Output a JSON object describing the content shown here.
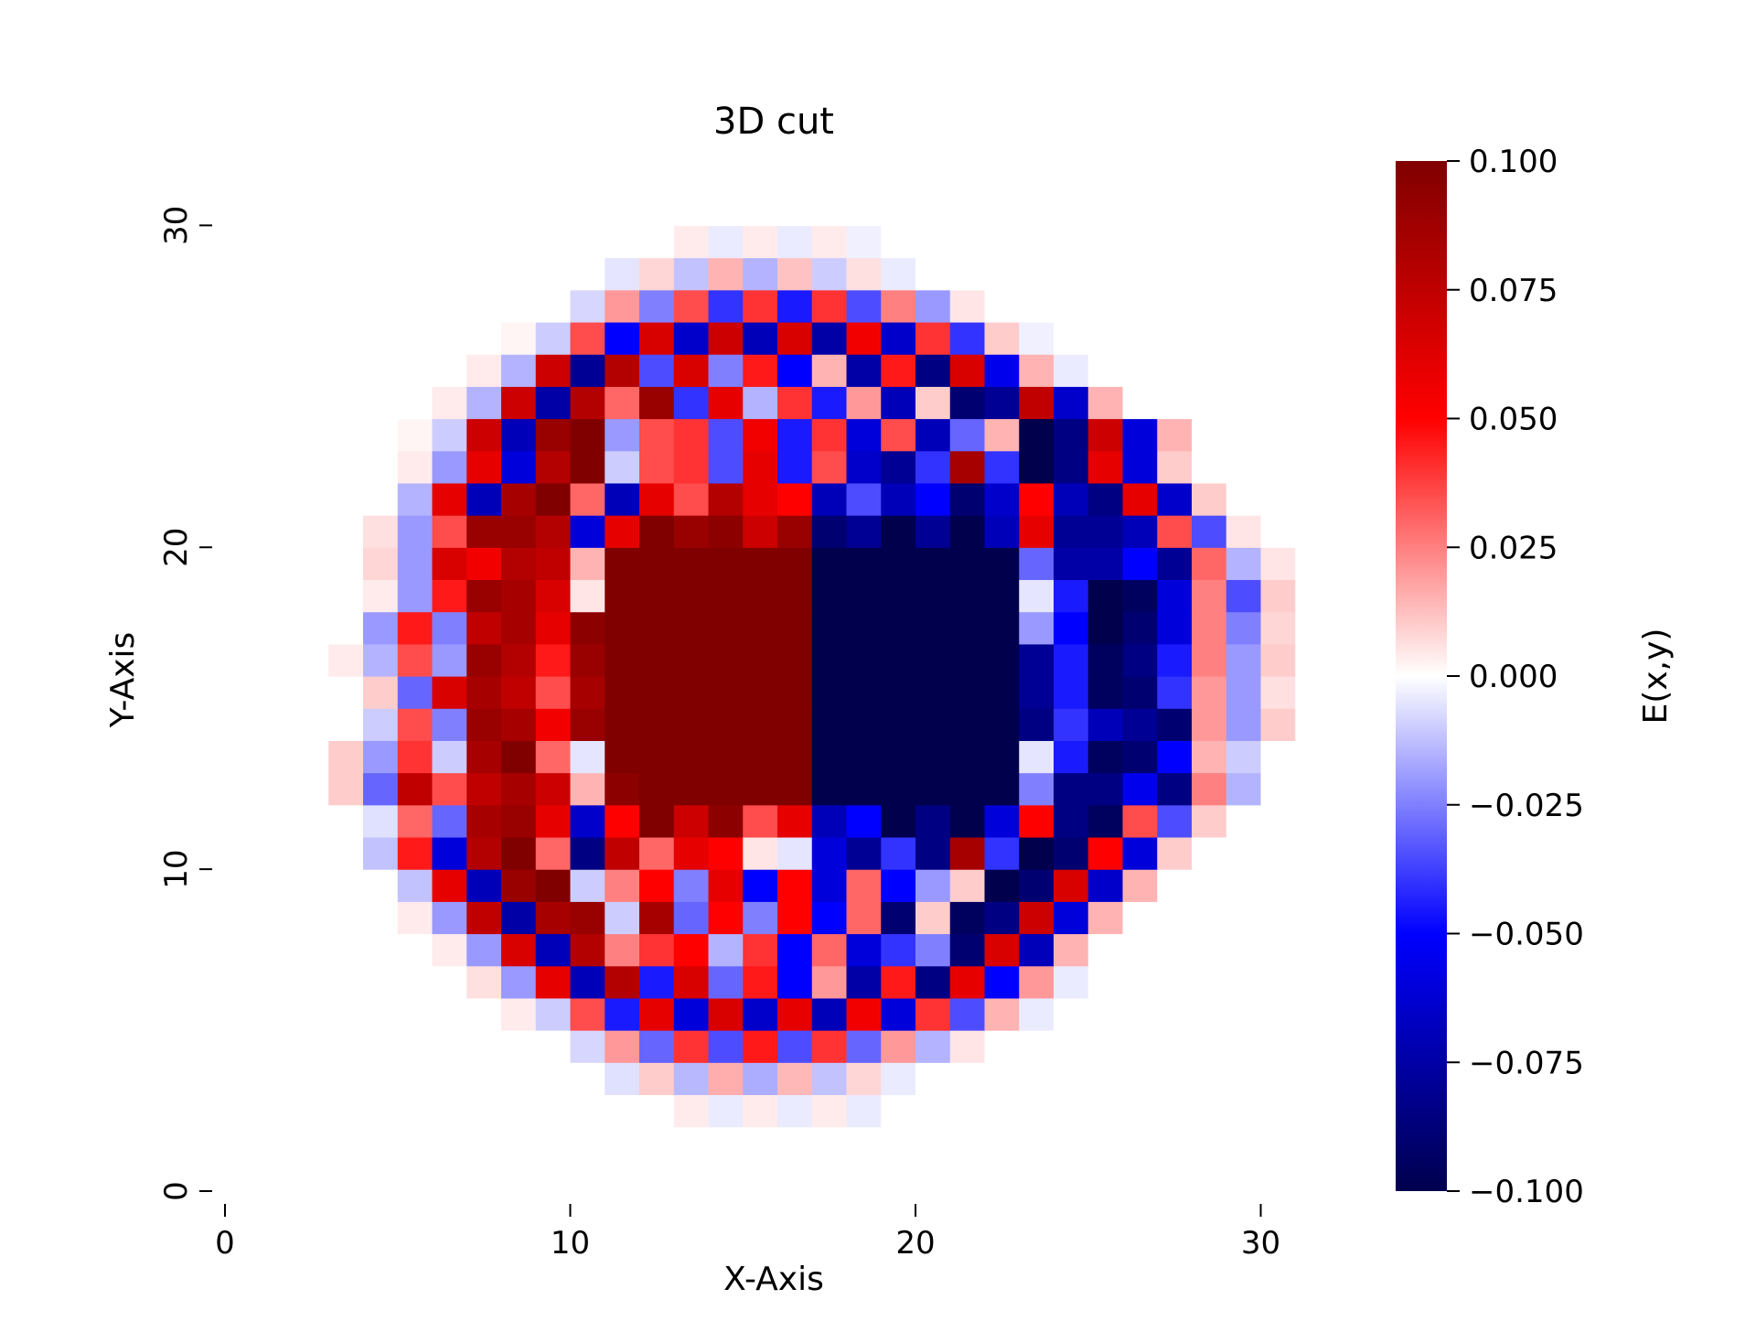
{
  "chart_data": {
    "type": "heatmap",
    "title": "3D cut",
    "xlabel": "X-Axis",
    "ylabel": "Y-Axis",
    "xlim": [
      0,
      32
    ],
    "ylim": [
      0,
      32
    ],
    "x_ticks": [
      0,
      10,
      20,
      30
    ],
    "y_ticks": [
      0,
      10,
      20,
      30
    ],
    "x_tick_labels": [
      "0",
      "10",
      "20",
      "30"
    ],
    "y_tick_labels": [
      "0",
      "10",
      "20",
      "30"
    ],
    "grid": false,
    "colorbar": {
      "label": "E(x,y)",
      "min": -0.1,
      "max": 0.1,
      "ticks": [
        0.1,
        0.075,
        0.05,
        0.025,
        0.0,
        -0.025,
        -0.05,
        -0.075,
        -0.1
      ],
      "tick_labels": [
        "0.100",
        "0.075",
        "0.050",
        "0.025",
        "0.000",
        "−0.025",
        "−0.050",
        "−0.075",
        "−0.100"
      ],
      "colormap": "seismic",
      "color_stops": [
        "#00004d",
        "#0000ff",
        "#ffffff",
        "#ff0000",
        "#800000"
      ]
    },
    "grid_size": [
      32,
      32
    ],
    "z": [
      [
        0,
        0,
        0,
        0,
        0,
        0,
        0,
        0,
        0,
        0,
        0,
        0,
        0,
        0,
        0,
        0,
        0,
        0,
        0,
        0,
        0,
        0,
        0,
        0,
        0,
        0,
        0,
        0,
        0,
        0,
        0,
        0
      ],
      [
        0,
        0,
        0,
        0,
        0,
        0,
        0,
        0,
        0,
        0,
        0,
        0,
        0,
        0,
        0,
        0,
        0,
        0,
        0,
        0,
        0,
        0,
        0,
        0,
        0,
        0,
        0,
        0,
        0,
        0,
        0,
        0
      ],
      [
        0,
        0,
        0,
        0,
        0,
        0,
        0,
        0,
        0,
        0,
        0,
        0,
        0,
        0.004,
        -0.004,
        0.004,
        -0.004,
        0.004,
        -0.004,
        0,
        0,
        0,
        0,
        0,
        0,
        0,
        0,
        0,
        0,
        0,
        0,
        0
      ],
      [
        0,
        0,
        0,
        0,
        0,
        0,
        0,
        0,
        0,
        0,
        0,
        -0.006,
        0.01,
        -0.014,
        0.016,
        -0.016,
        0.014,
        -0.012,
        0.008,
        -0.004,
        0,
        0,
        0,
        0,
        0,
        0,
        0,
        0,
        0,
        0,
        0,
        0
      ],
      [
        0,
        0,
        0,
        0,
        0,
        0,
        0,
        0,
        0,
        0,
        -0.008,
        0.02,
        -0.03,
        0.04,
        -0.035,
        0.045,
        -0.035,
        0.04,
        -0.03,
        0.02,
        -0.015,
        0.005,
        0,
        0,
        0,
        0,
        0,
        0,
        0,
        0,
        0,
        0
      ],
      [
        0,
        0,
        0,
        0,
        0,
        0,
        0,
        0,
        0.004,
        -0.01,
        0.035,
        -0.045,
        0.06,
        -0.06,
        0.065,
        -0.065,
        0.06,
        -0.07,
        0.055,
        -0.06,
        0.04,
        -0.035,
        0.015,
        -0.004,
        0,
        0,
        0,
        0,
        0,
        0,
        0,
        0
      ],
      [
        0,
        0,
        0,
        0,
        0,
        0,
        0,
        0.006,
        -0.02,
        0.06,
        -0.07,
        0.08,
        -0.045,
        0.065,
        -0.03,
        0.045,
        -0.05,
        0.02,
        -0.075,
        0.045,
        -0.085,
        0.06,
        -0.05,
        0.02,
        -0.004,
        0,
        0,
        0,
        0,
        0,
        0,
        0
      ],
      [
        0,
        0,
        0,
        0,
        0,
        0,
        0.004,
        -0.02,
        0.065,
        -0.07,
        0.08,
        0.025,
        0.04,
        0.05,
        -0.015,
        0.04,
        -0.05,
        0.03,
        -0.06,
        -0.04,
        -0.025,
        -0.09,
        0.065,
        -0.07,
        0.015,
        0,
        0,
        0,
        0,
        0,
        0,
        0
      ],
      [
        0,
        0,
        0,
        0,
        0,
        0.004,
        -0.02,
        0.075,
        -0.075,
        0.085,
        0.09,
        -0.01,
        0.085,
        -0.03,
        0.05,
        -0.025,
        0.05,
        -0.05,
        0.03,
        -0.09,
        0.01,
        -0.095,
        -0.085,
        0.07,
        -0.06,
        0.015,
        0,
        0,
        0,
        0,
        0,
        0
      ],
      [
        0,
        0,
        0,
        0,
        0,
        -0.012,
        0.06,
        -0.07,
        0.09,
        0.1,
        -0.01,
        0.025,
        0.05,
        -0.025,
        0.06,
        -0.05,
        0.05,
        -0.06,
        0.03,
        -0.05,
        -0.02,
        0.01,
        -0.1,
        -0.09,
        0.065,
        -0.065,
        0.015,
        0,
        0,
        0,
        0,
        0
      ],
      [
        0,
        0,
        0,
        0,
        -0.012,
        0.045,
        -0.06,
        0.08,
        0.1,
        0.03,
        -0.085,
        0.075,
        0.03,
        0.06,
        0.05,
        0.005,
        -0.005,
        -0.06,
        -0.08,
        -0.04,
        -0.085,
        0.085,
        -0.04,
        -0.1,
        -0.09,
        0.05,
        -0.06,
        0.01,
        0,
        0,
        0,
        0
      ],
      [
        0,
        0,
        0,
        0,
        -0.006,
        0.03,
        -0.03,
        0.085,
        0.09,
        0.06,
        -0.065,
        0.05,
        0.1,
        0.07,
        0.095,
        0.035,
        0.06,
        -0.07,
        -0.05,
        -0.1,
        -0.085,
        -0.1,
        -0.06,
        0.05,
        -0.085,
        -0.095,
        0.035,
        -0.035,
        0.01,
        0,
        0,
        0
      ],
      [
        0,
        0,
        0,
        0.01,
        -0.03,
        0.075,
        0.035,
        0.075,
        0.085,
        0.07,
        0.015,
        0.095,
        0.1,
        0.1,
        0.1,
        0.1,
        0.1,
        -0.1,
        -0.1,
        -0.1,
        -0.1,
        -0.1,
        -0.1,
        -0.025,
        -0.085,
        -0.085,
        -0.055,
        -0.085,
        0.025,
        -0.015,
        0,
        0
      ],
      [
        0,
        0,
        0,
        0.01,
        -0.02,
        0.04,
        -0.01,
        0.085,
        0.1,
        0.03,
        -0.005,
        0.1,
        0.1,
        0.1,
        0.1,
        0.1,
        0.1,
        -0.1,
        -0.1,
        -0.1,
        -0.1,
        -0.1,
        -0.1,
        -0.005,
        -0.045,
        -0.095,
        -0.09,
        -0.05,
        0.015,
        -0.01,
        0,
        0
      ],
      [
        0,
        0,
        0,
        0,
        -0.01,
        0.035,
        -0.025,
        0.09,
        0.085,
        0.055,
        0.09,
        0.1,
        0.1,
        0.1,
        0.1,
        0.1,
        0.1,
        -0.1,
        -0.1,
        -0.1,
        -0.1,
        -0.1,
        -0.1,
        -0.085,
        -0.04,
        -0.07,
        -0.08,
        -0.09,
        0.02,
        -0.02,
        0.01,
        0
      ],
      [
        0,
        0,
        0,
        0,
        0.01,
        -0.03,
        0.065,
        0.085,
        0.075,
        0.035,
        0.085,
        0.1,
        0.1,
        0.1,
        0.1,
        0.1,
        0.1,
        -0.1,
        -0.1,
        -0.1,
        -0.1,
        -0.1,
        -0.1,
        -0.08,
        -0.045,
        -0.095,
        -0.09,
        -0.04,
        0.02,
        -0.02,
        0.006,
        0
      ],
      [
        0,
        0,
        0,
        0.004,
        -0.015,
        0.035,
        -0.02,
        0.09,
        0.08,
        0.045,
        0.09,
        0.1,
        0.1,
        0.1,
        0.1,
        0.1,
        0.1,
        -0.1,
        -0.1,
        -0.1,
        -0.1,
        -0.1,
        -0.1,
        -0.08,
        -0.045,
        -0.095,
        -0.085,
        -0.045,
        0.025,
        -0.02,
        0.01,
        0
      ],
      [
        0,
        0,
        0,
        0,
        -0.02,
        0.045,
        -0.025,
        0.075,
        0.085,
        0.06,
        0.095,
        0.1,
        0.1,
        0.1,
        0.1,
        0.1,
        0.1,
        -0.1,
        -0.1,
        -0.1,
        -0.1,
        -0.1,
        -0.1,
        -0.02,
        -0.05,
        -0.1,
        -0.09,
        -0.06,
        0.025,
        -0.025,
        0.008,
        0
      ],
      [
        0,
        0,
        0,
        0,
        0.004,
        -0.02,
        0.045,
        0.09,
        0.085,
        0.065,
        0.005,
        0.1,
        0.1,
        0.1,
        0.1,
        0.1,
        0.1,
        -0.1,
        -0.1,
        -0.1,
        -0.1,
        -0.1,
        -0.1,
        -0.005,
        -0.045,
        -0.1,
        -0.095,
        -0.06,
        0.025,
        -0.035,
        0.01,
        0
      ],
      [
        0,
        0,
        0,
        0,
        0.008,
        -0.02,
        0.065,
        0.055,
        0.08,
        0.075,
        0.015,
        0.1,
        0.1,
        0.1,
        0.1,
        0.1,
        0.1,
        -0.1,
        -0.1,
        -0.1,
        -0.1,
        -0.1,
        -0.1,
        -0.03,
        -0.075,
        -0.075,
        -0.05,
        -0.08,
        0.03,
        -0.015,
        0.005,
        0
      ],
      [
        0,
        0,
        0,
        0,
        0.006,
        -0.02,
        0.035,
        0.09,
        0.09,
        0.08,
        -0.06,
        0.06,
        0.1,
        0.09,
        0.095,
        0.07,
        0.09,
        -0.09,
        -0.08,
        -0.1,
        -0.08,
        -0.1,
        -0.07,
        0.06,
        -0.08,
        -0.08,
        -0.07,
        0.035,
        -0.035,
        0.005,
        0,
        0
      ],
      [
        0,
        0,
        0,
        0,
        0,
        -0.015,
        0.06,
        -0.07,
        0.085,
        0.1,
        0.03,
        -0.07,
        0.06,
        0.035,
        0.08,
        0.06,
        0.05,
        -0.07,
        -0.035,
        -0.07,
        -0.05,
        -0.09,
        -0.065,
        0.05,
        -0.07,
        -0.085,
        0.06,
        -0.065,
        0.01,
        0,
        0,
        0
      ],
      [
        0,
        0,
        0,
        0,
        0,
        0.004,
        -0.02,
        0.06,
        -0.06,
        0.08,
        0.1,
        -0.01,
        0.035,
        0.04,
        -0.035,
        0.06,
        -0.045,
        0.035,
        -0.065,
        -0.08,
        -0.04,
        0.085,
        -0.04,
        -0.1,
        -0.085,
        0.06,
        -0.06,
        0.01,
        0,
        0,
        0,
        0
      ],
      [
        0,
        0,
        0,
        0,
        0,
        0.002,
        -0.01,
        0.07,
        -0.07,
        0.09,
        0.1,
        -0.02,
        0.035,
        0.04,
        -0.035,
        0.055,
        -0.045,
        0.04,
        -0.06,
        0.035,
        -0.07,
        -0.03,
        0.015,
        -0.1,
        -0.085,
        0.07,
        -0.06,
        0.015,
        0,
        0,
        0,
        0
      ],
      [
        0,
        0,
        0,
        0,
        0,
        0,
        0.004,
        -0.015,
        0.07,
        -0.075,
        0.08,
        0.03,
        0.09,
        -0.04,
        0.06,
        -0.015,
        0.04,
        -0.045,
        0.02,
        -0.07,
        0.01,
        -0.09,
        -0.08,
        0.075,
        -0.065,
        0.015,
        0,
        0,
        0,
        0,
        0,
        0
      ],
      [
        0,
        0,
        0,
        0,
        0,
        0,
        0,
        0.004,
        -0.015,
        0.07,
        -0.08,
        0.08,
        -0.035,
        0.065,
        -0.025,
        0.045,
        -0.05,
        0.015,
        -0.075,
        0.045,
        -0.085,
        0.065,
        -0.055,
        0.015,
        -0.004,
        0,
        0,
        0,
        0,
        0,
        0,
        0
      ],
      [
        0,
        0,
        0,
        0,
        0,
        0,
        0,
        0,
        0.002,
        -0.01,
        0.035,
        -0.05,
        0.065,
        -0.065,
        0.07,
        -0.07,
        0.065,
        -0.075,
        0.055,
        -0.065,
        0.04,
        -0.04,
        0.01,
        -0.003,
        0,
        0,
        0,
        0,
        0,
        0,
        0,
        0
      ],
      [
        0,
        0,
        0,
        0,
        0,
        0,
        0,
        0,
        0,
        0,
        -0.008,
        0.02,
        -0.025,
        0.035,
        -0.04,
        0.04,
        -0.045,
        0.04,
        -0.035,
        0.025,
        -0.02,
        0.005,
        0,
        0,
        0,
        0,
        0,
        0,
        0,
        0,
        0,
        0
      ],
      [
        0,
        0,
        0,
        0,
        0,
        0,
        0,
        0,
        0,
        0,
        0,
        -0.005,
        0.008,
        -0.012,
        0.015,
        -0.015,
        0.012,
        -0.01,
        0.006,
        -0.004,
        0,
        0,
        0,
        0,
        0,
        0,
        0,
        0,
        0,
        0,
        0,
        0
      ],
      [
        0,
        0,
        0,
        0,
        0,
        0,
        0,
        0,
        0,
        0,
        0,
        0,
        0,
        0.004,
        -0.004,
        0.004,
        -0.004,
        0.004,
        -0.003,
        0,
        0,
        0,
        0,
        0,
        0,
        0,
        0,
        0,
        0,
        0,
        0,
        0
      ],
      [
        0,
        0,
        0,
        0,
        0,
        0,
        0,
        0,
        0,
        0,
        0,
        0,
        0,
        0,
        0,
        0,
        0,
        0,
        0,
        0,
        0,
        0,
        0,
        0,
        0,
        0,
        0,
        0,
        0,
        0,
        0,
        0
      ],
      [
        0,
        0,
        0,
        0,
        0,
        0,
        0,
        0,
        0,
        0,
        0,
        0,
        0,
        0,
        0,
        0,
        0,
        0,
        0,
        0,
        0,
        0,
        0,
        0,
        0,
        0,
        0,
        0,
        0,
        0,
        0,
        0
      ]
    ]
  }
}
